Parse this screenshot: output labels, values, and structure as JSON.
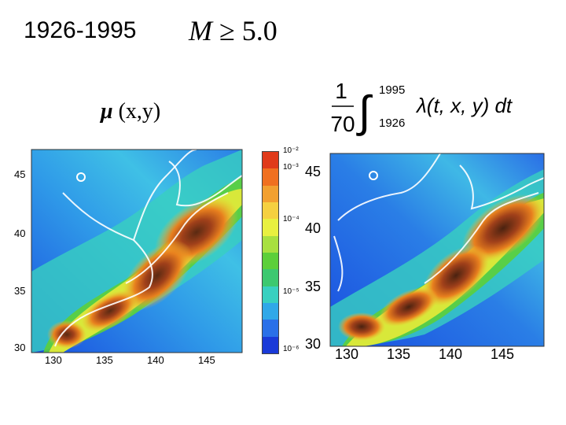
{
  "header": {
    "years": "1926-1995",
    "magnitude_var": "M",
    "magnitude_rel": "≥ 5.0"
  },
  "left_panel": {
    "label_symbol": "μ",
    "label_args": "(x,y)",
    "lat_ticks": [
      "45",
      "40",
      "35",
      "30"
    ],
    "lon_ticks": [
      "130",
      "135",
      "140",
      "145"
    ]
  },
  "colorbar": {
    "ticks": [
      "10⁻²",
      "10⁻³",
      "10⁻⁴",
      "10⁻⁵",
      "10⁻⁶"
    ],
    "colors_top_to_bottom": [
      "#e03a1a",
      "#f07020",
      "#f2a030",
      "#f5d040",
      "#e8f040",
      "#a8e040",
      "#5ccf3a",
      "#3cc870",
      "#38d0c0",
      "#30a8e8",
      "#2a70e8",
      "#1a3ad8"
    ]
  },
  "right_panel": {
    "formula_numerator": "1",
    "formula_denominator": "70",
    "integral_upper": "1995",
    "integral_lower": "1926",
    "integrand": "λ(t, x, y) dt",
    "lat_ticks": [
      "45",
      "40",
      "35",
      "30"
    ],
    "lon_ticks": [
      "130",
      "135",
      "140",
      "145"
    ]
  }
}
